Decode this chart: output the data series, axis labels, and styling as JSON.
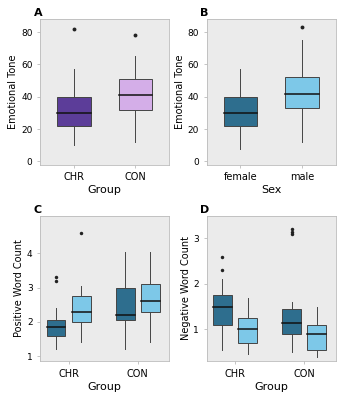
{
  "fig_bg": "#ffffff",
  "panel_bg": "#ebebeb",
  "colors": {
    "dark_purple": "#5C3D99",
    "light_purple": "#D4AEE8",
    "dark_blue": "#2E6E8E",
    "light_blue": "#7DC8E8"
  },
  "panel_A": {
    "label": "A",
    "xlabel": "Group",
    "ylabel": "Emotional Tone",
    "xticks": [
      "CHR",
      "CON"
    ],
    "ylim": [
      -2,
      88
    ],
    "yticks": [
      0,
      20,
      40,
      60,
      80
    ],
    "boxes": [
      {
        "q1": 22,
        "median": 30,
        "q3": 40,
        "whislo": 10,
        "whishi": 57,
        "fliers": [
          82
        ],
        "color": "#5C3D99"
      },
      {
        "q1": 32,
        "median": 41,
        "q3": 51,
        "whislo": 12,
        "whishi": 65,
        "fliers": [
          78
        ],
        "color": "#D4AEE8"
      }
    ]
  },
  "panel_B": {
    "label": "B",
    "xlabel": "Sex",
    "ylabel": "Emotional Tone",
    "xticks": [
      "female",
      "male"
    ],
    "ylim": [
      -2,
      88
    ],
    "yticks": [
      0,
      20,
      40,
      60,
      80
    ],
    "boxes": [
      {
        "q1": 22,
        "median": 30,
        "q3": 40,
        "whislo": 8,
        "whishi": 57,
        "fliers": [],
        "color": "#2E6E8E"
      },
      {
        "q1": 33,
        "median": 42,
        "q3": 52,
        "whislo": 12,
        "whishi": 75,
        "fliers": [
          83
        ],
        "color": "#7DC8E8"
      }
    ]
  },
  "panel_C": {
    "label": "C",
    "xlabel": "Group",
    "ylabel": "Positive Word Count",
    "xticks": [
      "CHR",
      "CON"
    ],
    "ylim": [
      0.85,
      5.1
    ],
    "yticks": [
      1,
      2,
      3,
      4
    ],
    "positions": [
      0.85,
      1.25,
      1.95,
      2.35
    ],
    "xtick_pos": [
      1.05,
      2.15
    ],
    "boxes": [
      {
        "q1": 1.6,
        "median": 1.85,
        "q3": 2.05,
        "whislo": 1.2,
        "whishi": 2.4,
        "fliers": [
          3.2,
          3.3
        ],
        "color": "#2E6E8E"
      },
      {
        "q1": 2.0,
        "median": 2.3,
        "q3": 2.75,
        "whislo": 1.4,
        "whishi": 3.05,
        "fliers": [
          4.6
        ],
        "color": "#7DC8E8"
      },
      {
        "q1": 2.05,
        "median": 2.2,
        "q3": 3.0,
        "whislo": 1.2,
        "whishi": 4.05,
        "fliers": [],
        "color": "#2E6E8E"
      },
      {
        "q1": 2.3,
        "median": 2.6,
        "q3": 3.1,
        "whislo": 1.4,
        "whishi": 4.05,
        "fliers": [],
        "color": "#7DC8E8"
      }
    ]
  },
  "panel_D": {
    "label": "D",
    "xlabel": "Group",
    "ylabel": "Negative Word Count",
    "xticks": [
      "CHR",
      "CON"
    ],
    "ylim": [
      0.3,
      3.5
    ],
    "yticks": [
      1,
      2,
      3
    ],
    "positions": [
      0.85,
      1.25,
      1.95,
      2.35
    ],
    "xtick_pos": [
      1.05,
      2.15
    ],
    "boxes": [
      {
        "q1": 1.1,
        "median": 1.5,
        "q3": 1.75,
        "whislo": 0.55,
        "whishi": 2.1,
        "fliers": [
          2.3,
          2.6
        ],
        "color": "#2E6E8E"
      },
      {
        "q1": 0.7,
        "median": 1.0,
        "q3": 1.25,
        "whislo": 0.45,
        "whishi": 1.7,
        "fliers": [],
        "color": "#7DC8E8"
      },
      {
        "q1": 0.9,
        "median": 1.15,
        "q3": 1.45,
        "whislo": 0.5,
        "whishi": 1.6,
        "fliers": [
          3.1,
          3.15,
          3.2
        ],
        "color": "#2E6E8E"
      },
      {
        "q1": 0.55,
        "median": 0.9,
        "q3": 1.1,
        "whislo": 0.4,
        "whishi": 1.5,
        "fliers": [],
        "color": "#7DC8E8"
      }
    ]
  }
}
